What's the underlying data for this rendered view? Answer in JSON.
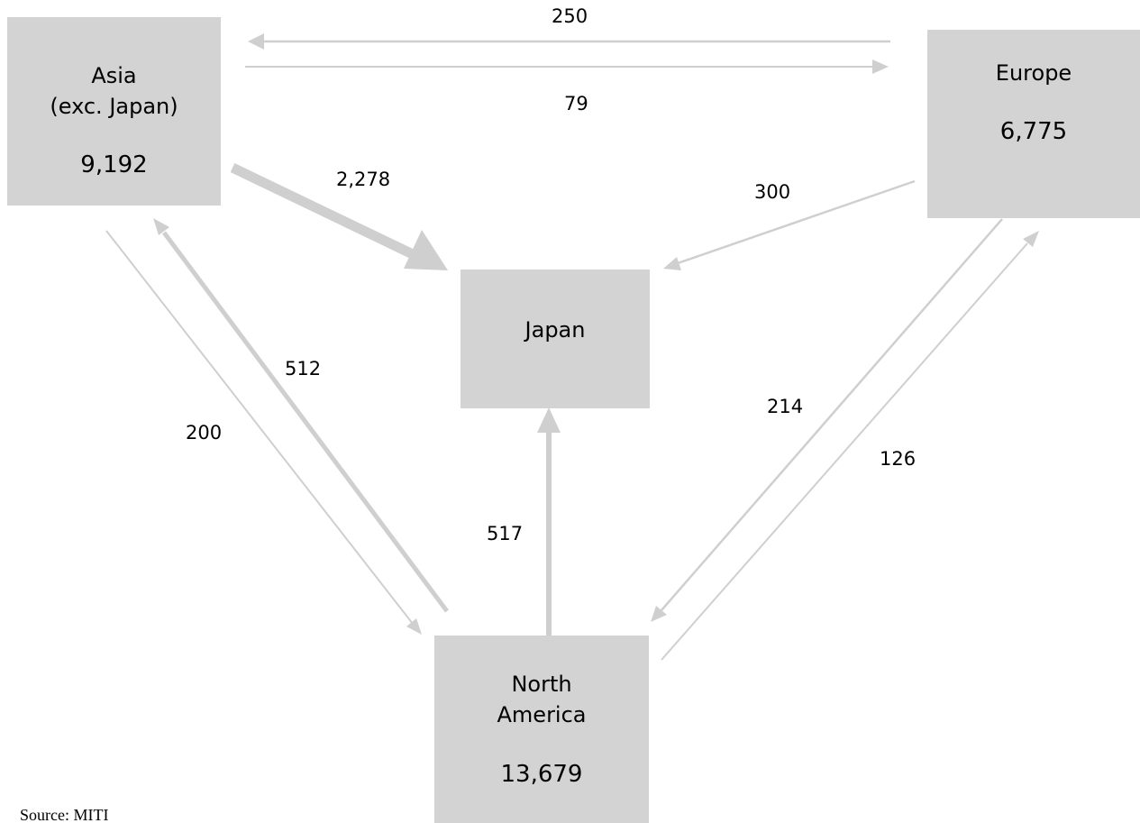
{
  "colors": {
    "box": "#d3d3d3",
    "arrow": "#cfcfcf",
    "text": "#000000"
  },
  "regions": {
    "asia": {
      "line1": "Asia",
      "line2": "(exc. Japan)",
      "value": "9,192"
    },
    "europe": {
      "line1": "Europe",
      "value": "6,775"
    },
    "japan": {
      "line1": "Japan"
    },
    "north_america": {
      "line1": "North",
      "line2": "America",
      "value": "13,679"
    }
  },
  "flows": [
    {
      "id": "europe_to_asia",
      "from": "Europe",
      "to": "Asia (exc. Japan)",
      "value": "250"
    },
    {
      "id": "asia_to_europe",
      "from": "Asia (exc. Japan)",
      "to": "Europe",
      "value": "79"
    },
    {
      "id": "asia_to_japan",
      "from": "Asia (exc. Japan)",
      "to": "Japan",
      "value": "2,278"
    },
    {
      "id": "europe_to_japan",
      "from": "Europe",
      "to": "Japan",
      "value": "300"
    },
    {
      "id": "asia_to_north_america",
      "from": "Asia (exc. Japan)",
      "to": "North America",
      "value": "200"
    },
    {
      "id": "north_america_to_asia",
      "from": "North America",
      "to": "Asia (exc. Japan)",
      "value": "512"
    },
    {
      "id": "north_america_to_japan",
      "from": "North America",
      "to": "Japan",
      "value": "517"
    },
    {
      "id": "europe_to_north_america",
      "from": "Europe",
      "to": "North America",
      "value": "214"
    },
    {
      "id": "north_america_to_europe",
      "from": "North America",
      "to": "Europe",
      "value": "126"
    }
  ],
  "source": "Source: MITI"
}
